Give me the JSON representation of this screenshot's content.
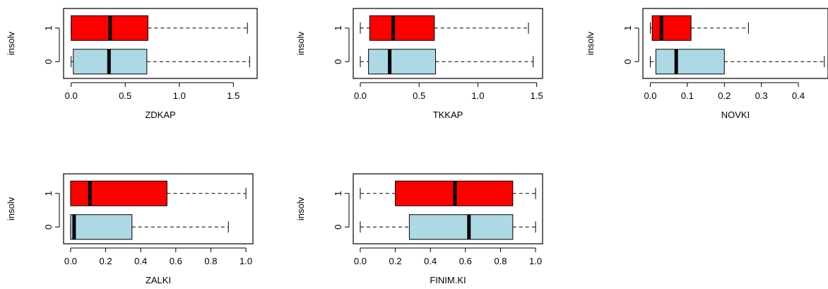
{
  "colors": {
    "group_1": "#ff0000",
    "group_0": "#add8e6",
    "stroke": "#000000"
  },
  "chart_data": [
    {
      "type": "boxplot",
      "orientation": "horizontal",
      "xlabel": "ZDKAP",
      "ylabel": "insolv",
      "xlim": [
        -0.07,
        1.72
      ],
      "xticks": [
        0.0,
        0.5,
        1.0,
        1.5
      ],
      "xtick_labels": [
        "0.0",
        "0.5",
        "1.0",
        "1.5"
      ],
      "categories": [
        "0",
        "1"
      ],
      "boxes": [
        {
          "group": "1",
          "whisker_low": 0.0,
          "q1": 0.0,
          "median": 0.36,
          "q3": 0.71,
          "whisker_high": 1.63
        },
        {
          "group": "0",
          "whisker_low": 0.0,
          "q1": 0.02,
          "median": 0.35,
          "q3": 0.7,
          "whisker_high": 1.65
        }
      ]
    },
    {
      "type": "boxplot",
      "orientation": "horizontal",
      "xlabel": "TKKAP",
      "ylabel": "insolv",
      "xlim": [
        -0.06,
        1.55
      ],
      "xticks": [
        0.0,
        0.5,
        1.0,
        1.5
      ],
      "xtick_labels": [
        "0.0",
        "0.5",
        "1.0",
        "1.5"
      ],
      "categories": [
        "0",
        "1"
      ],
      "boxes": [
        {
          "group": "1",
          "whisker_low": 0.0,
          "q1": 0.08,
          "median": 0.28,
          "q3": 0.63,
          "whisker_high": 1.43
        },
        {
          "group": "0",
          "whisker_low": 0.0,
          "q1": 0.07,
          "median": 0.25,
          "q3": 0.64,
          "whisker_high": 1.47
        }
      ]
    },
    {
      "type": "boxplot",
      "orientation": "horizontal",
      "xlabel": "NOVKI",
      "ylabel": "insolv",
      "xlim": [
        -0.02,
        0.48
      ],
      "xticks": [
        0.0,
        0.1,
        0.2,
        0.3,
        0.4
      ],
      "xtick_labels": [
        "0.0",
        "0.1",
        "0.2",
        "0.3",
        "0.4"
      ],
      "categories": [
        "0",
        "1"
      ],
      "boxes": [
        {
          "group": "1",
          "whisker_low": 0.0,
          "q1": 0.005,
          "median": 0.03,
          "q3": 0.11,
          "whisker_high": 0.265
        },
        {
          "group": "0",
          "whisker_low": 0.0,
          "q1": 0.015,
          "median": 0.07,
          "q3": 0.2,
          "whisker_high": 0.47
        }
      ]
    },
    {
      "type": "boxplot",
      "orientation": "horizontal",
      "xlabel": "ZALKI",
      "ylabel": "insolv",
      "xlim": [
        -0.04,
        1.04
      ],
      "xticks": [
        0.0,
        0.2,
        0.4,
        0.6,
        0.8,
        1.0
      ],
      "xtick_labels": [
        "0.0",
        "0.2",
        "0.4",
        "0.6",
        "0.8",
        "1.0"
      ],
      "categories": [
        "0",
        "1"
      ],
      "boxes": [
        {
          "group": "1",
          "whisker_low": 0.0,
          "q1": 0.0,
          "median": 0.11,
          "q3": 0.55,
          "whisker_high": 1.0
        },
        {
          "group": "0",
          "whisker_low": 0.0,
          "q1": 0.0,
          "median": 0.02,
          "q3": 0.35,
          "whisker_high": 0.9
        }
      ]
    },
    {
      "type": "boxplot",
      "orientation": "horizontal",
      "xlabel": "FINIM.KI",
      "ylabel": "insolv",
      "xlim": [
        -0.04,
        1.04
      ],
      "xticks": [
        0.0,
        0.2,
        0.4,
        0.6,
        0.8,
        1.0
      ],
      "xtick_labels": [
        "0.0",
        "0.2",
        "0.4",
        "0.6",
        "0.8",
        "1.0"
      ],
      "categories": [
        "0",
        "1"
      ],
      "boxes": [
        {
          "group": "1",
          "whisker_low": 0.0,
          "q1": 0.2,
          "median": 0.54,
          "q3": 0.87,
          "whisker_high": 1.0
        },
        {
          "group": "0",
          "whisker_low": 0.0,
          "q1": 0.28,
          "median": 0.62,
          "q3": 0.87,
          "whisker_high": 1.0
        }
      ]
    }
  ]
}
